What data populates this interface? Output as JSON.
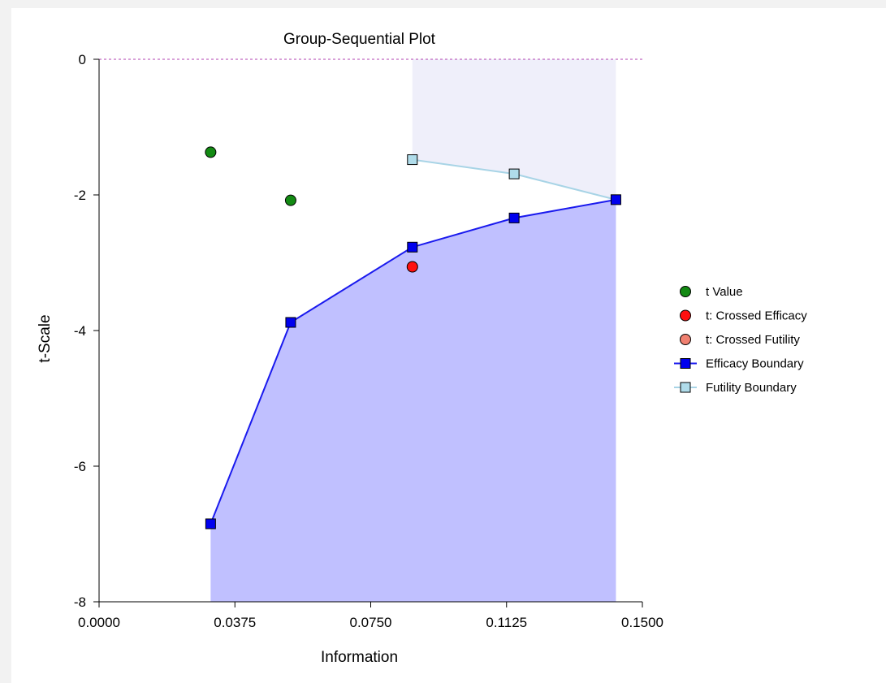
{
  "chart_data": {
    "type": "line",
    "title": "Group-Sequential Plot",
    "xlabel": "Information",
    "ylabel": "t-Scale",
    "xlim": [
      0,
      0.15
    ],
    "ylim": [
      -8,
      0
    ],
    "x_ticks": [
      "0.0000",
      "0.0375",
      "0.0750",
      "0.1125",
      "0.1500"
    ],
    "x_tick_values": [
      0,
      0.0375,
      0.075,
      0.1125,
      0.15
    ],
    "y_ticks": [
      "0",
      "-2",
      "-4",
      "-6",
      "-8"
    ],
    "y_tick_values": [
      0,
      -2,
      -4,
      -6,
      -8
    ],
    "reference_line_y": 0,
    "legend_position": "right",
    "colors": {
      "t_value": "#138a13",
      "crossed_efficacy": "#ff1010",
      "crossed_futility": "#f08070",
      "efficacy_line": "#1a1aee",
      "efficacy_marker": "#0000ee",
      "efficacy_fill": "#c0c0ff",
      "futility_line": "#a8d4e6",
      "futility_marker": "#b0dcea",
      "futility_fill": "#efeffa",
      "reference_line": "#b040b0"
    },
    "series": [
      {
        "name": "t Value",
        "kind": "points",
        "x": [
          0.0308,
          0.0529
        ],
        "y": [
          -1.37,
          -2.08
        ]
      },
      {
        "name": "t: Crossed Efficacy",
        "kind": "points",
        "x": [
          0.0865
        ],
        "y": [
          -3.06
        ]
      },
      {
        "name": "t: Crossed Futility",
        "kind": "points",
        "x": [],
        "y": []
      },
      {
        "name": "Efficacy Boundary",
        "kind": "line",
        "x": [
          0.0308,
          0.0529,
          0.0865,
          0.1146,
          0.1427
        ],
        "y": [
          -6.85,
          -3.88,
          -2.77,
          -2.34,
          -2.07
        ]
      },
      {
        "name": "Futility Boundary",
        "kind": "line",
        "x": [
          0.0865,
          0.1146,
          0.1427
        ],
        "y": [
          -1.48,
          -1.69,
          -2.07
        ]
      }
    ]
  }
}
